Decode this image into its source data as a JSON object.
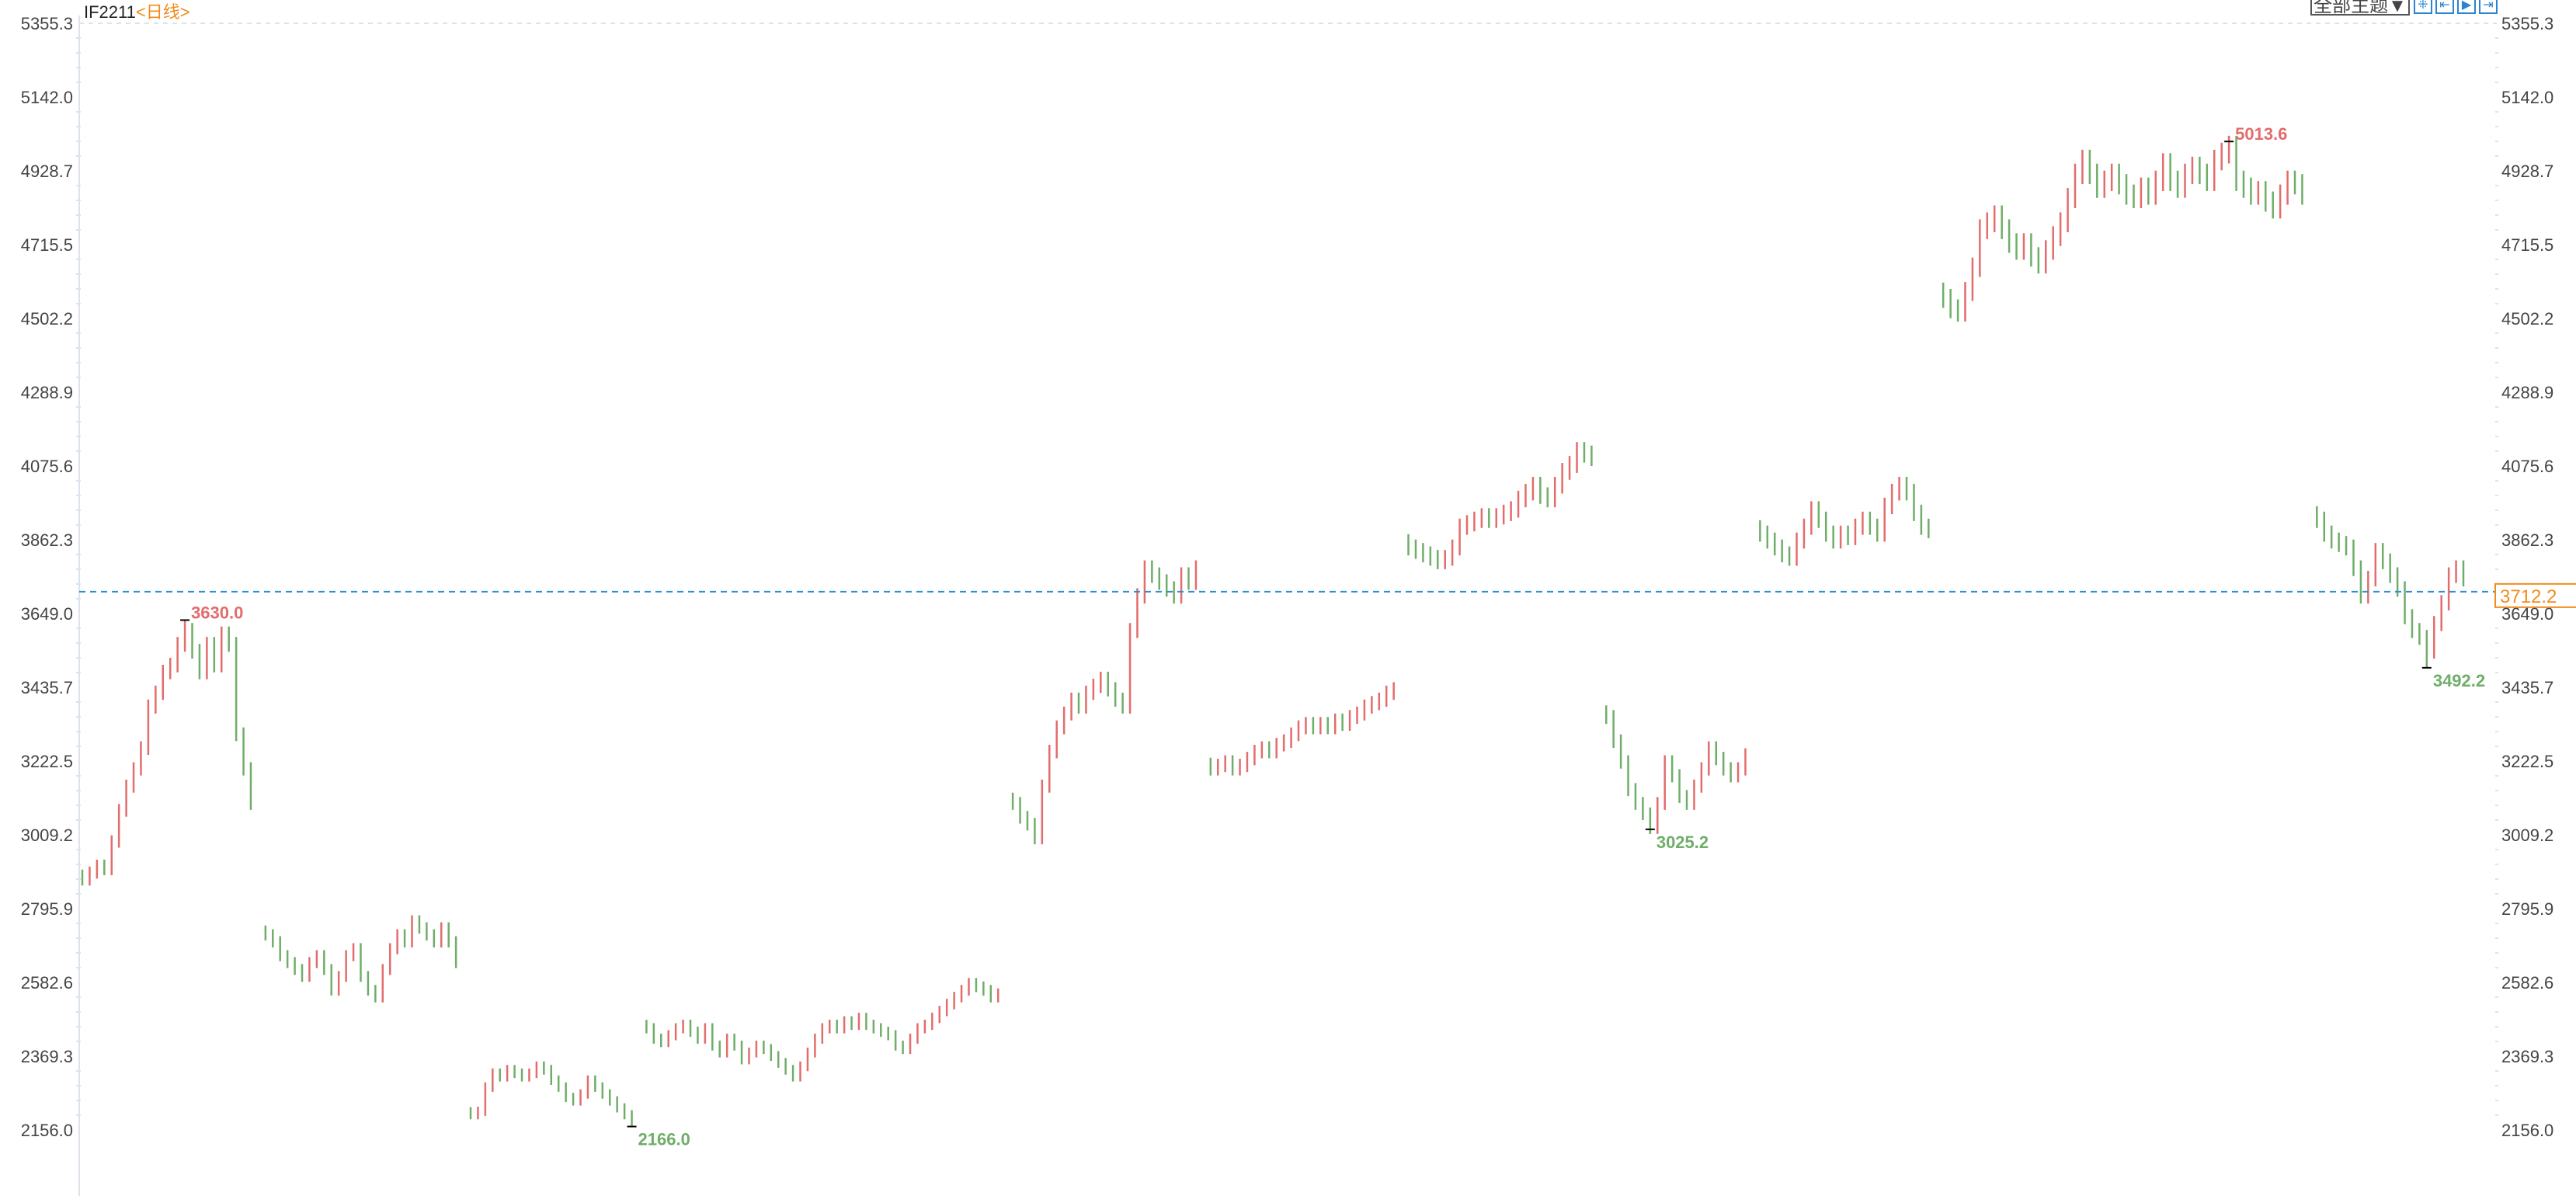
{
  "header": {
    "symbol": "IF2211",
    "period": "<日线>"
  },
  "toolbar": {
    "theme_label": "全部主题▼",
    "tools": [
      {
        "icon": "crosshair-icon",
        "glyph": "⁜"
      },
      {
        "icon": "zoom-range-icon",
        "glyph": "⇤"
      },
      {
        "icon": "play-forward-icon",
        "glyph": "▶"
      },
      {
        "icon": "move-right-icon",
        "glyph": "⇥"
      }
    ]
  },
  "colors": {
    "up": "#e36c6c",
    "down": "#6fae68",
    "last_price_line": "#2a8fd6",
    "last_price_box": "#f08c1e",
    "grid": "#dde3ea",
    "axis_text": "#444444"
  },
  "chart_data": {
    "type": "candlestick",
    "ylim": [
      2156.0,
      5355.3
    ],
    "yticks": [
      "5355.3",
      "5142.0",
      "4928.7",
      "4715.5",
      "4502.2",
      "4288.9",
      "4075.6",
      "3862.3",
      "3649.0",
      "3435.7",
      "3222.5",
      "3009.2",
      "2795.9",
      "2582.6",
      "2369.3",
      "2156.0"
    ],
    "last_price": "3712.2",
    "segments": [
      [
        2880,
        2900,
        2920,
        2910,
        2990,
        3080,
        3150,
        3200,
        3260,
        3380,
        3420,
        3480,
        3500,
        3560,
        3600,
        3540,
        3480,
        3560,
        3500,
        3590,
        3560,
        3300,
        3200,
        3100
      ],
      [
        2720,
        2700,
        2660,
        2640,
        2620,
        2600,
        2640,
        2660,
        2620,
        2560,
        2600,
        2660,
        2680,
        2600,
        2560,
        2540,
        2620,
        2680,
        2720,
        2700,
        2760,
        2740,
        2720,
        2700,
        2740,
        2700,
        2640
      ],
      [
        2200,
        2210,
        2280,
        2320,
        2310,
        2330,
        2320,
        2310,
        2320,
        2340,
        2330,
        2300,
        2280,
        2250,
        2240,
        2260,
        2300,
        2280,
        2260,
        2240,
        2220,
        2200,
        2180
      ],
      [
        2450,
        2420,
        2410,
        2430,
        2450,
        2460,
        2440,
        2420,
        2450,
        2400,
        2380,
        2420,
        2400,
        2360,
        2380,
        2400,
        2390,
        2370,
        2350,
        2330,
        2310,
        2340,
        2380,
        2420,
        2450,
        2460,
        2450,
        2470,
        2460,
        2480,
        2460,
        2450,
        2440,
        2430,
        2400,
        2390,
        2420,
        2450,
        2460,
        2480,
        2500,
        2520,
        2540,
        2560,
        2580,
        2570,
        2560,
        2540,
        2550
      ],
      [
        3100,
        3060,
        3040,
        3000,
        3150,
        3250,
        3320,
        3360,
        3400,
        3380,
        3420,
        3440,
        3460,
        3430,
        3400,
        3380,
        3600,
        3700,
        3780,
        3760,
        3740,
        3720,
        3700,
        3760,
        3740,
        3780
      ],
      [
        3200,
        3210,
        3220,
        3200,
        3210,
        3230,
        3250,
        3260,
        3250,
        3270,
        3280,
        3300,
        3320,
        3330,
        3320,
        3330,
        3320,
        3340,
        3330,
        3350,
        3360,
        3380,
        3390,
        3400,
        3420,
        3430
      ],
      [
        3840,
        3830,
        3820,
        3810,
        3800,
        3810,
        3840,
        3900,
        3910,
        3920,
        3930,
        3920,
        3930,
        3940,
        3950,
        3980,
        4000,
        4020,
        3990,
        3980,
        4020,
        4060,
        4080,
        4120,
        4110,
        4100
      ],
      [
        3350,
        3280,
        3220,
        3140,
        3100,
        3070,
        3030,
        3100,
        3220,
        3180,
        3120,
        3100,
        3150,
        3200,
        3260,
        3230,
        3200,
        3180,
        3200,
        3240
      ],
      [
        3880,
        3860,
        3840,
        3820,
        3810,
        3860,
        3900,
        3950,
        3920,
        3880,
        3860,
        3880,
        3870,
        3900,
        3920,
        3900,
        3880,
        3960,
        4000,
        4020,
        4000,
        3940,
        3900,
        3890
      ],
      [
        4560,
        4530,
        4520,
        4580,
        4650,
        4760,
        4780,
        4800,
        4760,
        4720,
        4700,
        4720,
        4680,
        4660,
        4700,
        4740,
        4780,
        4850,
        4920,
        4960,
        4920,
        4880,
        4900,
        4920,
        4890,
        4860,
        4850,
        4880,
        4860,
        4900,
        4950,
        4900,
        4880,
        4920,
        4940,
        4920,
        4900,
        4960,
        4980,
        5000,
        4900,
        4880,
        4860,
        4870,
        4840,
        4820,
        4860,
        4900,
        4890,
        4860
      ],
      [
        3920,
        3880,
        3860,
        3850,
        3840,
        3780,
        3700,
        3750,
        3830,
        3800,
        3760,
        3720,
        3640,
        3600,
        3580,
        3540,
        3620,
        3680,
        3760,
        3780,
        3750
      ]
    ],
    "annotations": [
      {
        "label": "3630.0",
        "value": 3630.0,
        "segment": 0,
        "type": "high"
      },
      {
        "label": "2166.0",
        "value": 2166.0,
        "segment": 2,
        "type": "low"
      },
      {
        "label": "3025.2",
        "value": 3025.2,
        "segment": 7,
        "type": "low"
      },
      {
        "label": "5013.6",
        "value": 5013.6,
        "segment": 9,
        "type": "high"
      },
      {
        "label": "3492.2",
        "value": 3492.2,
        "segment": 10,
        "type": "low"
      }
    ]
  }
}
